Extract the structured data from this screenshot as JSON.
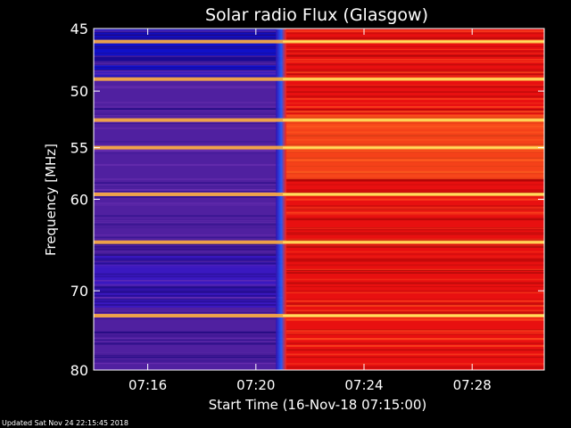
{
  "chart_data": {
    "type": "heatmap",
    "title": "Solar radio Flux (Glasgow)",
    "xlabel": "Start Time (16-Nov-18 07:15:00)",
    "ylabel": "Frequency [MHz]",
    "footer": "Updated Sat Nov 24 22:15:45 2018",
    "x_unit": "UT time",
    "x_range": [
      "07:14:00",
      "07:30:40"
    ],
    "y_range_mhz": [
      45,
      80
    ],
    "y_scale": "log",
    "x_ticks": [
      "07:16",
      "07:20",
      "07:24",
      "07:28"
    ],
    "y_ticks": [
      45,
      50,
      55,
      60,
      70,
      80
    ],
    "y_tick_labels": [
      "45",
      "50",
      "55",
      "60",
      "70",
      "80"
    ],
    "transition_time": "07:21:00",
    "before_transition": "low flux (blue/purple)",
    "after_transition": "high flux (red/orange)",
    "bright_bands_mhz": [
      46,
      49,
      52.5,
      55,
      59.5,
      64.5,
      73
    ],
    "colors": {
      "background": "#000000",
      "low": "#1010c8",
      "mid": "#5020a0",
      "high": "#e81010",
      "band": "#ffb040",
      "band_peak": "#ffe060"
    }
  }
}
